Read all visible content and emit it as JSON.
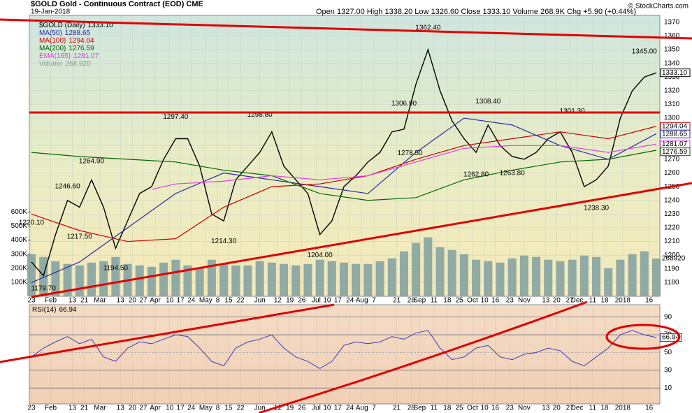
{
  "chart_data": {
    "type": "line",
    "title": "$GOLD Gold - Continuous Contract (EOD) CME",
    "date": "19-Jan-2018",
    "quote": "Open 1327.00 High 1338.20 Low 1326.60 Close 1333.10 Volume 268.9K Chg +5.90 (+0.44%)",
    "source": "© StockCharts.com",
    "xlim": [
      0,
      52
    ],
    "xticks": [
      {
        "value": 0,
        "label": "23"
      },
      {
        "value": 1.6,
        "label": "Feb"
      },
      {
        "value": 3.4,
        "label": "13"
      },
      {
        "value": 4.4,
        "label": "21"
      },
      {
        "value": 5.7,
        "label": "Mar"
      },
      {
        "value": 7.4,
        "label": "13"
      },
      {
        "value": 8.4,
        "label": "20"
      },
      {
        "value": 9.3,
        "label": "27"
      },
      {
        "value": 10.3,
        "label": "Apr"
      },
      {
        "value": 11.5,
        "label": "10"
      },
      {
        "value": 12.4,
        "label": "17"
      },
      {
        "value": 13.3,
        "label": "24"
      },
      {
        "value": 14.5,
        "label": "May"
      },
      {
        "value": 15.5,
        "label": "8"
      },
      {
        "value": 16.4,
        "label": "15"
      },
      {
        "value": 17.4,
        "label": "22"
      },
      {
        "value": 19,
        "label": "Jun"
      },
      {
        "value": 20.5,
        "label": "12"
      },
      {
        "value": 21.5,
        "label": "19"
      },
      {
        "value": 22.5,
        "label": "26"
      },
      {
        "value": 23.7,
        "label": "Jul"
      },
      {
        "value": 24.6,
        "label": "10"
      },
      {
        "value": 25.5,
        "label": "17"
      },
      {
        "value": 26.5,
        "label": "24"
      },
      {
        "value": 27.5,
        "label": "Aug"
      },
      {
        "value": 28.5,
        "label": "7"
      },
      {
        "value": 30.4,
        "label": "21"
      },
      {
        "value": 31.6,
        "label": "28"
      },
      {
        "value": 32.3,
        "label": "Sep"
      },
      {
        "value": 33.5,
        "label": "11"
      },
      {
        "value": 34.6,
        "label": "18"
      },
      {
        "value": 35.6,
        "label": "25"
      },
      {
        "value": 36.7,
        "label": "Oct"
      },
      {
        "value": 37.7,
        "label": "10"
      },
      {
        "value": 38.6,
        "label": "16"
      },
      {
        "value": 39.8,
        "label": "23"
      },
      {
        "value": 41,
        "label": "Nov"
      },
      {
        "value": 42.8,
        "label": "13"
      },
      {
        "value": 43.7,
        "label": "20"
      },
      {
        "value": 44.8,
        "label": "27"
      },
      {
        "value": 45.4,
        "label": "Dec"
      },
      {
        "value": 46.7,
        "label": "11"
      },
      {
        "value": 47.7,
        "label": "18"
      },
      {
        "value": 49.2,
        "label": "2018"
      },
      {
        "value": 51.4,
        "label": "16"
      }
    ],
    "ylim": [
      1170,
      1375
    ],
    "yticks": [
      1180,
      1190,
      1200,
      1210,
      1220,
      1230,
      1240,
      1250,
      1260,
      1270,
      1280,
      1290,
      1300,
      1310,
      1320,
      1330,
      1340,
      1350,
      1360,
      1370
    ],
    "series": [
      {
        "name": "$GOLD (Daily)",
        "color": "#000000",
        "last_label": "1333.10",
        "x": [
          0,
          1,
          2,
          3,
          4,
          5,
          6,
          7,
          8,
          9,
          10,
          11,
          12,
          13,
          14,
          15,
          16,
          17,
          18,
          19,
          20,
          21,
          22,
          23,
          24,
          25,
          26,
          27,
          28,
          29,
          30,
          31,
          32,
          33,
          34,
          35,
          36,
          37,
          38,
          39,
          40,
          41,
          42,
          43,
          44,
          45,
          46,
          47,
          48,
          49,
          50,
          51,
          52
        ],
        "values": [
          1195,
          1185,
          1215,
          1240,
          1235,
          1255,
          1235,
          1205,
          1225,
          1245,
          1250,
          1270,
          1285,
          1285,
          1265,
          1230,
          1225,
          1255,
          1265,
          1275,
          1290,
          1265,
          1255,
          1245,
          1215,
          1225,
          1250,
          1258,
          1268,
          1275,
          1290,
          1292,
          1325,
          1350,
          1320,
          1298,
          1285,
          1275,
          1295,
          1280,
          1272,
          1270,
          1275,
          1285,
          1290,
          1275,
          1250,
          1255,
          1265,
          1300,
          1320,
          1330,
          1333.1
        ]
      },
      {
        "name": "MA(50)",
        "color": "#2a2aa0",
        "last_label": "1288.65",
        "x": [
          0,
          4,
          8,
          12,
          16,
          20,
          24,
          28,
          32,
          36,
          40,
          44,
          48,
          52
        ],
        "values": [
          1180,
          1195,
          1220,
          1245,
          1260,
          1255,
          1250,
          1245,
          1275,
          1300,
          1295,
          1280,
          1270,
          1288.65
        ]
      },
      {
        "name": "MA(100)",
        "color": "#cc0000",
        "last_label": "1294.04",
        "x": [
          0,
          4,
          8,
          12,
          16,
          20,
          24,
          28,
          32,
          36,
          40,
          44,
          48,
          52
        ],
        "values": [
          1230,
          1218,
          1210,
          1212,
          1235,
          1250,
          1252,
          1258,
          1270,
          1280,
          1285,
          1290,
          1285,
          1294.04
        ]
      },
      {
        "name": "MA(200)",
        "color": "#006600",
        "last_label": "1276.59",
        "x": [
          0,
          4,
          8,
          12,
          16,
          20,
          24,
          28,
          32,
          36,
          40,
          44,
          48,
          52
        ],
        "values": [
          1275,
          1272,
          1270,
          1268,
          1262,
          1258,
          1245,
          1240,
          1242,
          1255,
          1262,
          1268,
          1270,
          1276.59
        ]
      },
      {
        "name": "EMA(165)",
        "color": "#e040e0",
        "last_label": "1281.07",
        "x": [
          10,
          12,
          16,
          20,
          24,
          28,
          32,
          36,
          40,
          44,
          48,
          52
        ],
        "values": [
          1248,
          1252,
          1254,
          1258,
          1255,
          1258,
          1268,
          1278,
          1280,
          1280,
          1275,
          1281.07
        ]
      }
    ],
    "volume": {
      "name": "Volume",
      "color": "#7f9fa0",
      "legend_label": "268,920",
      "last_label": "268920",
      "ylim": [
        0,
        2000000
      ],
      "yticks": [
        {
          "value": 100000,
          "label": "100K"
        },
        {
          "value": 200000,
          "label": "200K"
        },
        {
          "value": 300000,
          "label": "300K"
        },
        {
          "value": 400000,
          "label": "400K"
        },
        {
          "value": 500000,
          "label": "500K"
        },
        {
          "value": 600000,
          "label": "600K"
        }
      ],
      "values": [
        300000,
        280000,
        250000,
        230000,
        220000,
        240000,
        250000,
        280000,
        230000,
        220000,
        210000,
        240000,
        260000,
        220000,
        200000,
        260000,
        230000,
        220000,
        220000,
        250000,
        240000,
        230000,
        220000,
        230000,
        260000,
        250000,
        240000,
        230000,
        230000,
        250000,
        270000,
        320000,
        380000,
        420000,
        350000,
        330000,
        300000,
        260000,
        250000,
        240000,
        270000,
        290000,
        280000,
        260000,
        250000,
        260000,
        290000,
        280000,
        200000,
        260000,
        300000,
        320000,
        268920
      ]
    },
    "annotations": [
      {
        "x": 0,
        "value": 1220.1,
        "label": "1220.10"
      },
      {
        "x": 1,
        "value": 1179.7,
        "label": "1179.70"
      },
      {
        "x": 3,
        "value": 1246.6,
        "label": "1246.60"
      },
      {
        "x": 4,
        "value": 1217.5,
        "label": "1217.50"
      },
      {
        "x": 5,
        "value": 1264.9,
        "label": "1264.90"
      },
      {
        "x": 7,
        "value": 1194.5,
        "label": "1194.50"
      },
      {
        "x": 12,
        "value": 1297.4,
        "label": "1297.40"
      },
      {
        "x": 16,
        "value": 1214.3,
        "label": "1214.30"
      },
      {
        "x": 19,
        "value": 1298.8,
        "label": "1298.80"
      },
      {
        "x": 24,
        "value": 1204,
        "label": "1204.00"
      },
      {
        "x": 31,
        "value": 1306.9,
        "label": "1306.90"
      },
      {
        "x": 31.5,
        "value": 1278.5,
        "label": "1278.50"
      },
      {
        "x": 33,
        "value": 1362.4,
        "label": "1362.40"
      },
      {
        "x": 37,
        "value": 1262.8,
        "label": "1262.80"
      },
      {
        "x": 38,
        "value": 1308.4,
        "label": "1308.40"
      },
      {
        "x": 40,
        "value": 1263.8,
        "label": "1263.80"
      },
      {
        "x": 45,
        "value": 1301.3,
        "label": "1301.30"
      },
      {
        "x": 47,
        "value": 1238.3,
        "label": "1238.30"
      },
      {
        "x": 51,
        "value": 1345,
        "label": "1345.00"
      }
    ],
    "rsi": {
      "name": "RSI(14)",
      "color": "#3a3ac0",
      "last_label": "66.94",
      "ylim": [
        -8,
        104
      ],
      "yticks": [
        10,
        30,
        50,
        70,
        90
      ],
      "values": [
        45,
        55,
        62,
        68,
        60,
        65,
        45,
        40,
        55,
        62,
        60,
        65,
        70,
        68,
        55,
        40,
        35,
        55,
        62,
        65,
        70,
        55,
        45,
        40,
        32,
        40,
        58,
        62,
        60,
        62,
        68,
        65,
        72,
        75,
        55,
        42,
        45,
        55,
        58,
        45,
        42,
        48,
        50,
        55,
        52,
        40,
        35,
        45,
        55,
        70,
        75,
        70,
        66.94
      ]
    }
  }
}
